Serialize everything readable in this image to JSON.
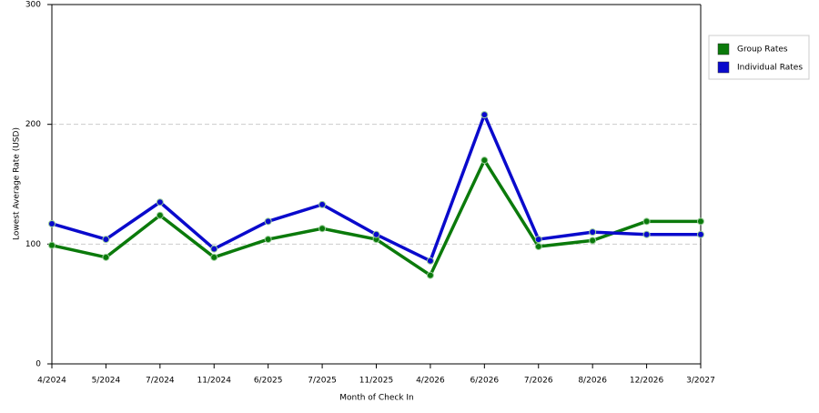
{
  "chart_data": {
    "type": "line",
    "x_label": "Month of Check In",
    "y_label": "Lowest Average Rate (USD)",
    "categories": [
      "4/2024",
      "5/2024",
      "7/2024",
      "11/2024",
      "6/2025",
      "7/2025",
      "11/2025",
      "4/2026",
      "6/2026",
      "7/2026",
      "8/2026",
      "12/2026",
      "3/2027"
    ],
    "series": [
      {
        "name": "Group Rates",
        "color": "#0b7a0b",
        "values": [
          99,
          89,
          124,
          89,
          104,
          113,
          104,
          74,
          170,
          98,
          103,
          119,
          119
        ]
      },
      {
        "name": "Individual Rates",
        "color": "#0a0acc",
        "values": [
          117,
          104,
          135,
          96,
          119,
          133,
          108,
          86,
          208,
          104,
          110,
          108,
          108
        ]
      }
    ],
    "ylim": [
      0,
      300
    ],
    "yticks": [
      0,
      100,
      200,
      300
    ],
    "grid": true,
    "legend": "right"
  }
}
